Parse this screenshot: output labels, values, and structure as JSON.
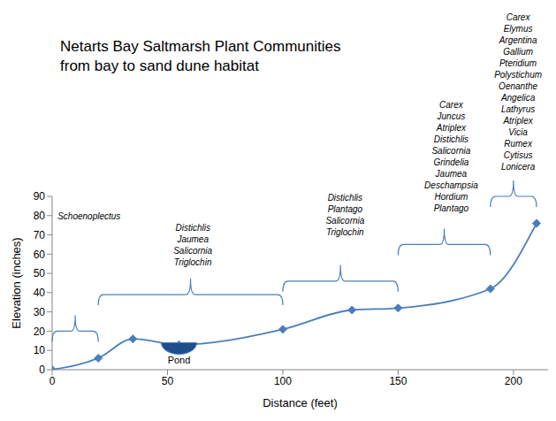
{
  "chart_data": {
    "type": "line",
    "title": "Netarts Bay Saltmarsh Plant Communities\nfrom bay to sand dune habitat",
    "x_label": "Distance (feet)",
    "y_label": "Elevation (inches)",
    "x": [
      0,
      20,
      35,
      55,
      100,
      130,
      150,
      190,
      210
    ],
    "values": [
      0,
      6,
      16,
      13,
      21,
      31,
      32,
      42,
      76
    ],
    "color": "#4a7ebb",
    "marker": "diamond",
    "xlim": [
      0,
      215
    ],
    "ylim": [
      0,
      90
    ],
    "xticks": [
      0,
      50,
      100,
      150,
      200
    ],
    "yticks": [
      0,
      10,
      20,
      30,
      40,
      50,
      60,
      70,
      80,
      90
    ],
    "grid": false,
    "annotations": [
      {
        "text": "Pond",
        "x": 55,
        "y": 14
      }
    ],
    "zones": [
      {
        "species": [
          "Schoenoplectus"
        ],
        "x_start": 0,
        "x_end": 20,
        "y": 20,
        "label_x": 16,
        "label_y": 78
      },
      {
        "species": [
          "Distichlis",
          "Jaumea",
          "Salicornia",
          "Triglochin"
        ],
        "x_start": 20,
        "x_end": 100,
        "y": 39,
        "label_x": 61,
        "label_y": 54
      },
      {
        "species": [
          "Distichlis",
          "Plantago",
          "Salicornia",
          "Triglochin"
        ],
        "x_start": 100,
        "x_end": 150,
        "y": 46,
        "label_x": 127,
        "label_y": 70
      },
      {
        "species": [
          "Carex",
          "Juncus",
          "Atriplex",
          "Distichlis",
          "Salicornia",
          "Grindelia",
          "Jaumea",
          "Deschampsia",
          "Hordium",
          "Plantago"
        ],
        "x_start": 150,
        "x_end": 190,
        "y": 65,
        "label_x": 173,
        "label_y": 82
      },
      {
        "species": [
          "Carex",
          "Elymus",
          "Argentina",
          "Gallium",
          "Pteridium",
          "Polystichum",
          "Oenanthe",
          "Angelica",
          "Lathyrus",
          "Atriplex",
          "Vicia",
          "Rumex",
          "Cytisus",
          "Lonicera"
        ],
        "x_start": 190,
        "x_end": 210,
        "y": 90,
        "label_x": 202,
        "label_y": 104
      }
    ]
  }
}
